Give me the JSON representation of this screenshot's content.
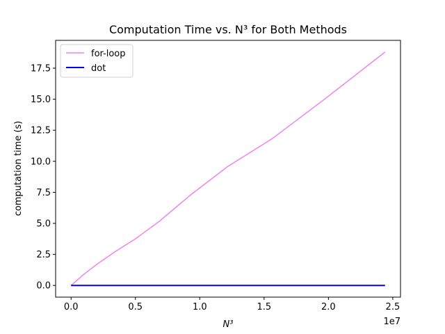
{
  "chart_data": {
    "type": "line",
    "title": "Computation Time vs. N³ for Both Methods",
    "xlabel": "N³",
    "ylabel": "computation time (s)",
    "x_offset_label": "1e7",
    "xlim": [
      -1200000,
      25600000
    ],
    "ylim": [
      -0.94,
      19.74
    ],
    "x_ticks": [
      0,
      5000000,
      10000000,
      15000000,
      20000000,
      25000000
    ],
    "x_tick_labels": [
      "0.0",
      "0.5",
      "1.0",
      "1.5",
      "2.0",
      "2.5"
    ],
    "y_ticks": [
      0,
      2.5,
      5,
      7.5,
      10,
      12.5,
      15,
      17.5
    ],
    "y_tick_labels": [
      "0.0",
      "2.5",
      "5.0",
      "7.5",
      "10.0",
      "12.5",
      "15.0",
      "17.5"
    ],
    "grid": false,
    "legend_position": "top-left",
    "series": [
      {
        "name": "for-loop",
        "color": "#ee82ee",
        "x": [
          0,
          1000000,
          2000000,
          3400000,
          5000000,
          6900000,
          9300000,
          12200000,
          15600000,
          19700000,
          24400000
        ],
        "y": [
          0,
          0.9,
          1.7,
          2.7,
          3.75,
          5.2,
          7.3,
          9.6,
          11.8,
          15.0,
          18.8
        ]
      },
      {
        "name": "dot",
        "color": "#0000ff",
        "x": [
          0,
          24400000
        ],
        "y": [
          0,
          0
        ]
      }
    ]
  }
}
